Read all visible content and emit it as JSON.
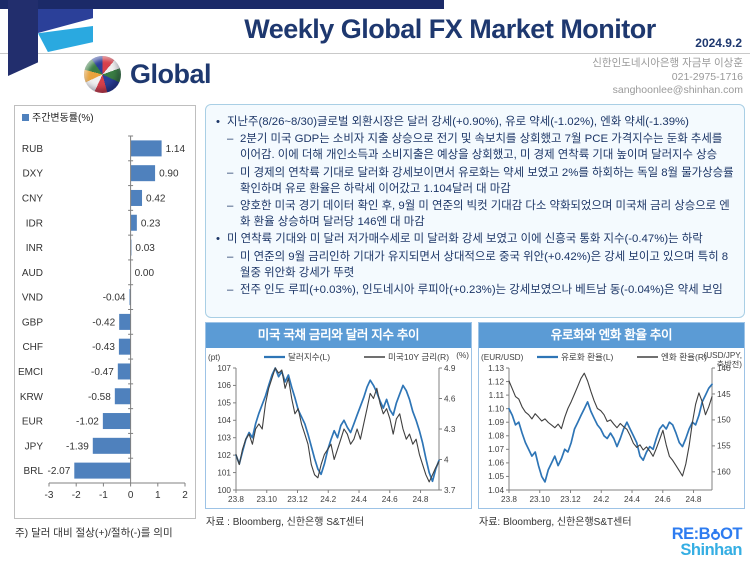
{
  "header": {
    "title": "Weekly Global FX Market Monitor",
    "date": "2024.9.2",
    "brand": "Global",
    "contact_line1": "신한인도네시아은행 자금부 이상훈",
    "contact_line2": "021-2975-1716",
    "contact_line3": "sanghoonlee@shinhan.com"
  },
  "commentary": {
    "marker1": "•",
    "marker2": "–",
    "bullets": [
      {
        "level": 1,
        "text": "지난주(8/26~8/30)글로벌 외환시장은 달러 강세(+0.90%), 유로 약세(-1.02%), 엔화 약세(-1.39%)"
      },
      {
        "level": 2,
        "text": "2분기 미국 GDP는 소비자 지출 상승으로 전기 및 속보치를 상회했고 7월 PCE 가격지수는 둔화 추세를 이어감. 이에 더해 개인소득과 소비지출은 예상을 상회했고, 미 경제 연착륙 기대 높이며 달러지수 상승"
      },
      {
        "level": 2,
        "text": "미 경제의 연착륙 기대로 달러화 강세보이면서 유로화는 약세 보였고 2%를 하회하는 독일 8월 물가상승률 확인하며 유로 환율은 하락세 이어갔고 1.104달러 대 마감"
      },
      {
        "level": 2,
        "text": "양호한 미국 경기 데이터 확인 후, 9월 미 연준의 빅컷 기대감 다소 약화되었으며 미국채 금리 상승으로 엔화 환율 상승하며 달러당 146엔 대 마감"
      },
      {
        "level": 1,
        "text": "미 연착륙 기대와 미 달러 저가매수세로 미 달러화 강세 보였고 이에 신흥국 통화 지수(-0.47%)는 하락"
      },
      {
        "level": 2,
        "text": "미 연준의 9월 금리인하 기대가 유지되면서 상대적으로 중국 위안(+0.42%)은 강세 보이고 있으며 특히 8월중 위안화 강세가 뚜렷"
      },
      {
        "level": 2,
        "text": "전주 인도 루피(+0.03%), 인도네시아 루피아(+0.23%)는 강세보였으나 베트남 동(-0.04%)은 약세 보임"
      }
    ]
  },
  "chart_data": [
    {
      "type": "bar",
      "orientation": "horizontal",
      "legend": "주간변동률(%)",
      "categories": [
        "RUB",
        "DXY",
        "CNY",
        "IDR",
        "INR",
        "AUD",
        "VND",
        "GBP",
        "CHF",
        "EMCI",
        "KRW",
        "EUR",
        "JPY",
        "BRL"
      ],
      "values": [
        1.14,
        0.9,
        0.42,
        0.23,
        0.03,
        0.0,
        -0.04,
        -0.42,
        -0.43,
        -0.47,
        -0.58,
        -1.02,
        -1.39,
        -2.07
      ],
      "value_labels": [
        "1.14",
        "0.90",
        "0.42",
        "0.23",
        "0.03",
        "0.00",
        "-0.04",
        "-0.42",
        "-0.43",
        "-0.47",
        "-0.58",
        "-1.02",
        "-1.39",
        "-2.07"
      ],
      "xlim": [
        -3,
        2
      ],
      "x_ticks": [
        "-3",
        "-2",
        "-1",
        "0",
        "1",
        "2"
      ],
      "bar_color": "#4f81bd",
      "note": "주) 달러 대비 절상(+)/절하(-)를 의미"
    },
    {
      "type": "line",
      "title": "미국 국채 금리와 달러 지수 추이",
      "source": "자료 : Bloomberg, 신한은행 S&T센터",
      "x_tick_labels": [
        "23.8",
        "23.10",
        "23.12",
        "24.2",
        "24.4",
        "24.6",
        "24.8"
      ],
      "left_axis": {
        "unit": "(pt)",
        "min": 100,
        "max": 107,
        "tick_labels": [
          "100",
          "101",
          "102",
          "103",
          "104",
          "105",
          "106",
          "107"
        ],
        "tick_values": [
          100,
          101,
          102,
          103,
          104,
          105,
          106,
          107
        ]
      },
      "right_axis": {
        "unit": "(%)",
        "min": 3.7,
        "max": 4.9,
        "inverted": false,
        "tick_labels": [
          "3.7",
          "4",
          "4.3",
          "4.6",
          "4.9"
        ],
        "tick_values": [
          3.7,
          4.0,
          4.3,
          4.6,
          4.9
        ]
      },
      "series": [
        {
          "name": "달러지수(L)",
          "axis": "left",
          "color": "#2e75b6",
          "width": 1.7,
          "values": [
            102.0,
            101.5,
            102.2,
            102.9,
            103.3,
            103.0,
            103.8,
            104.4,
            104.9,
            105.4,
            106.0,
            106.6,
            107.0,
            106.5,
            106.8,
            106.2,
            106.6,
            105.9,
            105.3,
            104.6,
            104.2,
            103.8,
            103.2,
            102.5,
            101.8,
            101.2,
            100.9,
            101.5,
            102.3,
            102.9,
            103.4,
            103.0,
            103.7,
            104.0,
            103.6,
            103.3,
            103.8,
            104.3,
            104.8,
            105.3,
            105.9,
            106.3,
            106.0,
            105.6,
            105.1,
            104.7,
            105.2,
            104.6,
            104.3,
            105.0,
            105.5,
            106.0,
            105.7,
            105.2,
            104.5,
            104.0,
            103.4,
            102.7,
            101.8,
            101.0,
            100.5,
            101.2,
            101.7
          ]
        },
        {
          "name": "미국10Y 금리(R)",
          "axis": "right",
          "color": "#404040",
          "width": 1.1,
          "values": [
            4.05,
            3.95,
            4.1,
            4.2,
            4.25,
            4.15,
            4.3,
            4.35,
            4.3,
            4.55,
            4.7,
            4.8,
            4.9,
            4.85,
            4.88,
            4.7,
            4.8,
            4.6,
            4.45,
            4.5,
            4.35,
            4.25,
            4.15,
            3.95,
            3.85,
            3.82,
            3.95,
            4.05,
            4.1,
            4.15,
            4.0,
            4.1,
            4.2,
            4.3,
            4.25,
            4.15,
            4.2,
            4.3,
            4.2,
            4.35,
            4.5,
            4.65,
            4.6,
            4.7,
            4.55,
            4.45,
            4.5,
            4.4,
            4.25,
            4.4,
            4.45,
            4.3,
            4.2,
            4.25,
            4.15,
            4.2,
            4.05,
            3.95,
            3.85,
            3.78,
            3.85,
            3.92,
            3.98
          ]
        }
      ]
    },
    {
      "type": "line",
      "title": "유로화와 엔화 환율 추이",
      "source": "자료: Bloomberg, 신한은행S&T센터",
      "x_tick_labels": [
        "23.8",
        "23.10",
        "23.12",
        "24.2",
        "24.4",
        "24.6",
        "24.8"
      ],
      "left_axis": {
        "unit": "(EUR/USD)",
        "min": 1.04,
        "max": 1.13,
        "tick_labels": [
          "1.04",
          "1.05",
          "1.06",
          "1.07",
          "1.08",
          "1.09",
          "1.10",
          "1.11",
          "1.12",
          "1.13"
        ],
        "tick_values": [
          1.04,
          1.05,
          1.06,
          1.07,
          1.08,
          1.09,
          1.1,
          1.11,
          1.12,
          1.13
        ]
      },
      "right_axis": {
        "unit": "(USD/JPY,",
        "unit2": "축반전)",
        "min": 140,
        "max": 163.5,
        "inverted": true,
        "tick_labels": [
          "140",
          "145",
          "150",
          "155",
          "160"
        ],
        "tick_values": [
          140,
          145,
          150,
          155,
          160
        ]
      },
      "series": [
        {
          "name": "유로화 환율(L)",
          "axis": "left",
          "color": "#2e75b6",
          "width": 1.7,
          "values": [
            1.1,
            1.095,
            1.088,
            1.09,
            1.082,
            1.075,
            1.07,
            1.065,
            1.068,
            1.058,
            1.05,
            1.046,
            1.055,
            1.06,
            1.065,
            1.058,
            1.063,
            1.07,
            1.068,
            1.075,
            1.085,
            1.09,
            1.095,
            1.1,
            1.105,
            1.098,
            1.093,
            1.088,
            1.085,
            1.08,
            1.078,
            1.082,
            1.078,
            1.072,
            1.078,
            1.085,
            1.09,
            1.085,
            1.08,
            1.075,
            1.065,
            1.062,
            1.068,
            1.072,
            1.07,
            1.078,
            1.085,
            1.088,
            1.085,
            1.09,
            1.088,
            1.082,
            1.075,
            1.072,
            1.078,
            1.085,
            1.09,
            1.088,
            1.095,
            1.105,
            1.11,
            1.115,
            1.118
          ]
        },
        {
          "name": "엔화 환율(R)",
          "axis": "right",
          "color": "#404040",
          "width": 1.1,
          "values": [
            142.5,
            144.0,
            145.5,
            146.0,
            147.5,
            148.5,
            149.0,
            149.8,
            148.8,
            149.5,
            150.2,
            149.8,
            150.5,
            151.0,
            151.5,
            150.8,
            151.7,
            149.5,
            147.8,
            146.5,
            145.0,
            143.5,
            142.0,
            141.0,
            142.5,
            144.5,
            146.3,
            147.8,
            148.2,
            149.0,
            150.3,
            150.0,
            150.8,
            151.5,
            150.7,
            151.3,
            151.8,
            153.0,
            154.5,
            155.3,
            154.8,
            155.8,
            155.2,
            156.0,
            157.0,
            155.5,
            153.8,
            152.0,
            154.8,
            157.0,
            157.8,
            158.8,
            159.8,
            160.8,
            158.5,
            155.0,
            150.5,
            147.0,
            144.8,
            146.5,
            149.0,
            147.5,
            145.5
          ]
        }
      ]
    }
  ],
  "footer": {
    "reboot_prefix": "RE:B",
    "reboot_suffix": "OT",
    "shinhan": "Shinhan"
  },
  "colors": {
    "navy": "#1e386f",
    "chart_header_blue": "#5b9bd5",
    "bar_blue": "#4f81bd",
    "line_blue": "#2e75b6",
    "line_dark": "#404040",
    "ribbon_cyan": "#2aa9e0",
    "reboot_blue": "#2e7cf0",
    "shinhan_blue": "#35aee3"
  }
}
